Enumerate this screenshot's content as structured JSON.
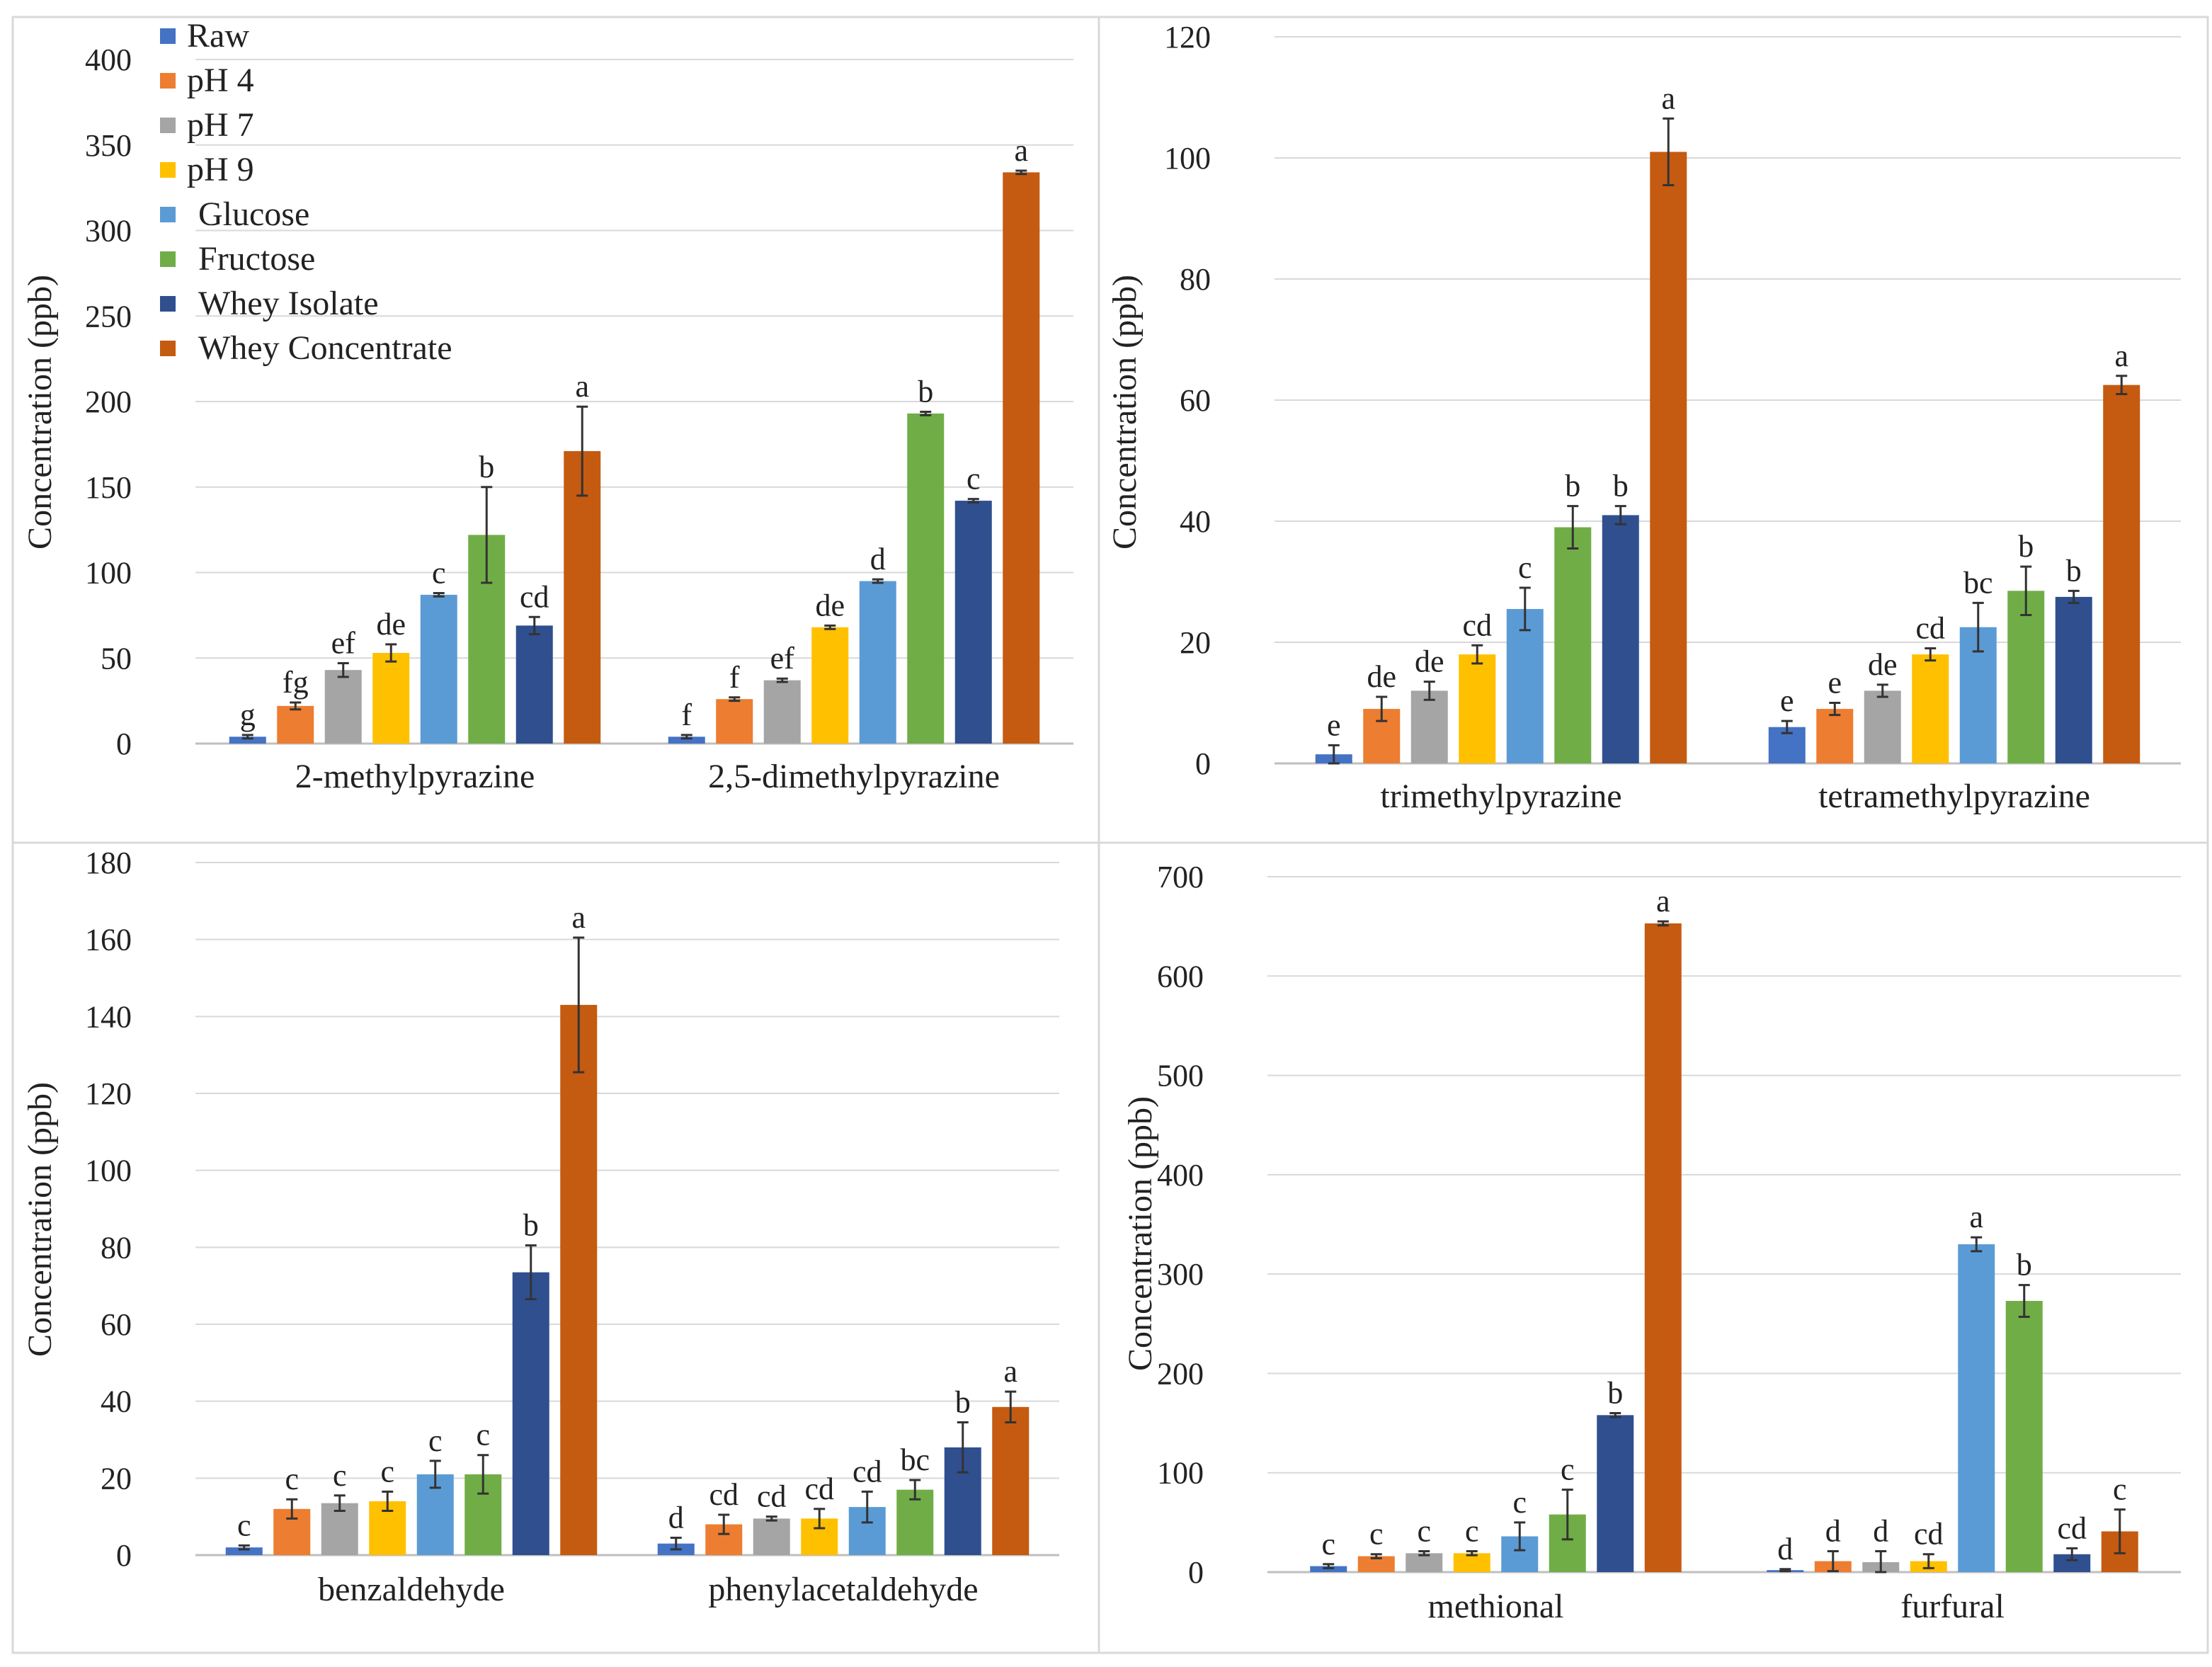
{
  "colors": {
    "Raw": "#4472C4",
    "pH 4": "#ED7D31",
    "pH 7": "#A5A5A5",
    "pH 9": "#FFC000",
    "Glucose": "#5B9BD5",
    "Fructose": "#70AD47",
    "Whey Isolate": "#2F4F8F",
    "Whey Concentrate": "#C55A11"
  },
  "legend": [
    "Raw",
    "pH 4",
    "pH 7",
    "pH 9",
    "Glucose",
    "Fructose",
    "Whey Isolate",
    "Whey Concentrate"
  ],
  "chart_data": [
    {
      "type": "bar",
      "title": "",
      "xlabel": "",
      "ylabel": "Concentration (ppb)",
      "ylim": [
        0,
        400
      ],
      "yticks": [
        0,
        50,
        100,
        150,
        200,
        250,
        300,
        350,
        400
      ],
      "grid": true,
      "legend_position": "top-left",
      "categories": [
        "2-methylpyrazine",
        "2,5-dimethylpyrazine"
      ],
      "series": [
        {
          "name": "Raw",
          "values": [
            4,
            4
          ],
          "errors": [
            1,
            1
          ],
          "letters": [
            "g",
            "f"
          ]
        },
        {
          "name": "pH 4",
          "values": [
            22,
            26
          ],
          "errors": [
            2,
            1
          ],
          "letters": [
            "fg",
            "f"
          ]
        },
        {
          "name": "pH 7",
          "values": [
            43,
            37
          ],
          "errors": [
            4,
            1
          ],
          "letters": [
            "ef",
            "ef"
          ]
        },
        {
          "name": "pH 9",
          "values": [
            53,
            68
          ],
          "errors": [
            5,
            1
          ],
          "letters": [
            "de",
            "de"
          ]
        },
        {
          "name": "Glucose",
          "values": [
            87,
            95
          ],
          "errors": [
            1,
            1
          ],
          "letters": [
            "c",
            "d"
          ]
        },
        {
          "name": "Fructose",
          "values": [
            122,
            193
          ],
          "errors": [
            28,
            1
          ],
          "letters": [
            "b",
            "b"
          ]
        },
        {
          "name": "Whey Isolate",
          "values": [
            69,
            142
          ],
          "errors": [
            5,
            1
          ],
          "letters": [
            "cd",
            "c"
          ]
        },
        {
          "name": "Whey Concentrate",
          "values": [
            171,
            334
          ],
          "errors": [
            26,
            1
          ],
          "letters": [
            "a",
            "a"
          ]
        }
      ]
    },
    {
      "type": "bar",
      "title": "",
      "xlabel": "",
      "ylabel": "Concentration (ppb)",
      "ylim": [
        0,
        120
      ],
      "yticks": [
        0,
        20,
        40,
        60,
        80,
        100,
        120
      ],
      "grid": true,
      "categories": [
        "trimethylpyrazine",
        "tetramethylpyrazine"
      ],
      "series": [
        {
          "name": "Raw",
          "values": [
            1.5,
            6
          ],
          "errors": [
            1.5,
            1
          ],
          "letters": [
            "e",
            "e"
          ]
        },
        {
          "name": "pH 4",
          "values": [
            9,
            9
          ],
          "errors": [
            2,
            1
          ],
          "letters": [
            "de",
            "e"
          ]
        },
        {
          "name": "pH 7",
          "values": [
            12,
            12
          ],
          "errors": [
            1.5,
            1
          ],
          "letters": [
            "de",
            "de"
          ]
        },
        {
          "name": "pH 9",
          "values": [
            18,
            18
          ],
          "errors": [
            1.5,
            1
          ],
          "letters": [
            "cd",
            "cd"
          ]
        },
        {
          "name": "Glucose",
          "values": [
            25.5,
            22.5
          ],
          "errors": [
            3.5,
            4
          ],
          "letters": [
            "c",
            "bc"
          ]
        },
        {
          "name": "Fructose",
          "values": [
            39,
            28.5
          ],
          "errors": [
            3.5,
            4
          ],
          "letters": [
            "b",
            "b"
          ]
        },
        {
          "name": "Whey Isolate",
          "values": [
            41,
            27.5
          ],
          "errors": [
            1.5,
            1
          ],
          "letters": [
            "b",
            "b"
          ]
        },
        {
          "name": "Whey Concentrate",
          "values": [
            101,
            62.5
          ],
          "errors": [
            5.5,
            1.5
          ],
          "letters": [
            "a",
            "a"
          ]
        }
      ]
    },
    {
      "type": "bar",
      "title": "",
      "xlabel": "",
      "ylabel": "Concentration (ppb)",
      "ylim": [
        0,
        180
      ],
      "yticks": [
        0,
        20,
        40,
        60,
        80,
        100,
        120,
        140,
        160,
        180
      ],
      "grid": true,
      "categories": [
        "benzaldehyde",
        "phenylacetaldehyde"
      ],
      "series": [
        {
          "name": "Raw",
          "values": [
            2,
            3
          ],
          "errors": [
            0.5,
            1.5
          ],
          "letters": [
            "c",
            "d"
          ]
        },
        {
          "name": "pH 4",
          "values": [
            12,
            8
          ],
          "errors": [
            2.5,
            2.5
          ],
          "letters": [
            "c",
            "cd"
          ]
        },
        {
          "name": "pH 7",
          "values": [
            13.5,
            9.5
          ],
          "errors": [
            2,
            0.5
          ],
          "letters": [
            "c",
            "cd"
          ]
        },
        {
          "name": "pH 9",
          "values": [
            14,
            9.5
          ],
          "errors": [
            2.5,
            2.5
          ],
          "letters": [
            "c",
            "cd"
          ]
        },
        {
          "name": "Glucose",
          "values": [
            21,
            12.5
          ],
          "errors": [
            3.5,
            4
          ],
          "letters": [
            "c",
            "cd"
          ]
        },
        {
          "name": "Fructose",
          "values": [
            21,
            17
          ],
          "errors": [
            5,
            2.5
          ],
          "letters": [
            "c",
            "bc"
          ]
        },
        {
          "name": "Whey Isolate",
          "values": [
            73.5,
            28
          ],
          "errors": [
            7,
            6.5
          ],
          "letters": [
            "b",
            "b"
          ]
        },
        {
          "name": "Whey Concentrate",
          "values": [
            143,
            38.5
          ],
          "errors": [
            17.5,
            4
          ],
          "letters": [
            "a",
            "a"
          ]
        }
      ]
    },
    {
      "type": "bar",
      "title": "",
      "xlabel": "",
      "ylabel": "Concentration (ppb)",
      "ylim": [
        0,
        700
      ],
      "yticks": [
        0,
        100,
        200,
        300,
        400,
        500,
        600,
        700
      ],
      "grid": true,
      "categories": [
        "methional",
        "furfural"
      ],
      "series": [
        {
          "name": "Raw",
          "values": [
            6,
            2
          ],
          "errors": [
            2,
            1
          ],
          "letters": [
            "c",
            "d"
          ]
        },
        {
          "name": "pH 4",
          "values": [
            16,
            11
          ],
          "errors": [
            2,
            10
          ],
          "letters": [
            "c",
            "d"
          ]
        },
        {
          "name": "pH 7",
          "values": [
            19,
            10
          ],
          "errors": [
            2,
            11
          ],
          "letters": [
            "c",
            "d"
          ]
        },
        {
          "name": "pH 9",
          "values": [
            19,
            11
          ],
          "errors": [
            2,
            7
          ],
          "letters": [
            "c",
            "cd"
          ]
        },
        {
          "name": "Glucose",
          "values": [
            36,
            330
          ],
          "errors": [
            14,
            7
          ],
          "letters": [
            "c",
            "a"
          ]
        },
        {
          "name": "Fructose",
          "values": [
            58,
            273
          ],
          "errors": [
            25,
            16
          ],
          "letters": [
            "c",
            "b"
          ]
        },
        {
          "name": "Whey Isolate",
          "values": [
            158,
            18
          ],
          "errors": [
            2,
            6
          ],
          "letters": [
            "b",
            "cd"
          ]
        },
        {
          "name": "Whey Concentrate",
          "values": [
            653,
            41
          ],
          "errors": [
            2,
            22
          ],
          "letters": [
            "a",
            "c"
          ]
        }
      ]
    }
  ]
}
